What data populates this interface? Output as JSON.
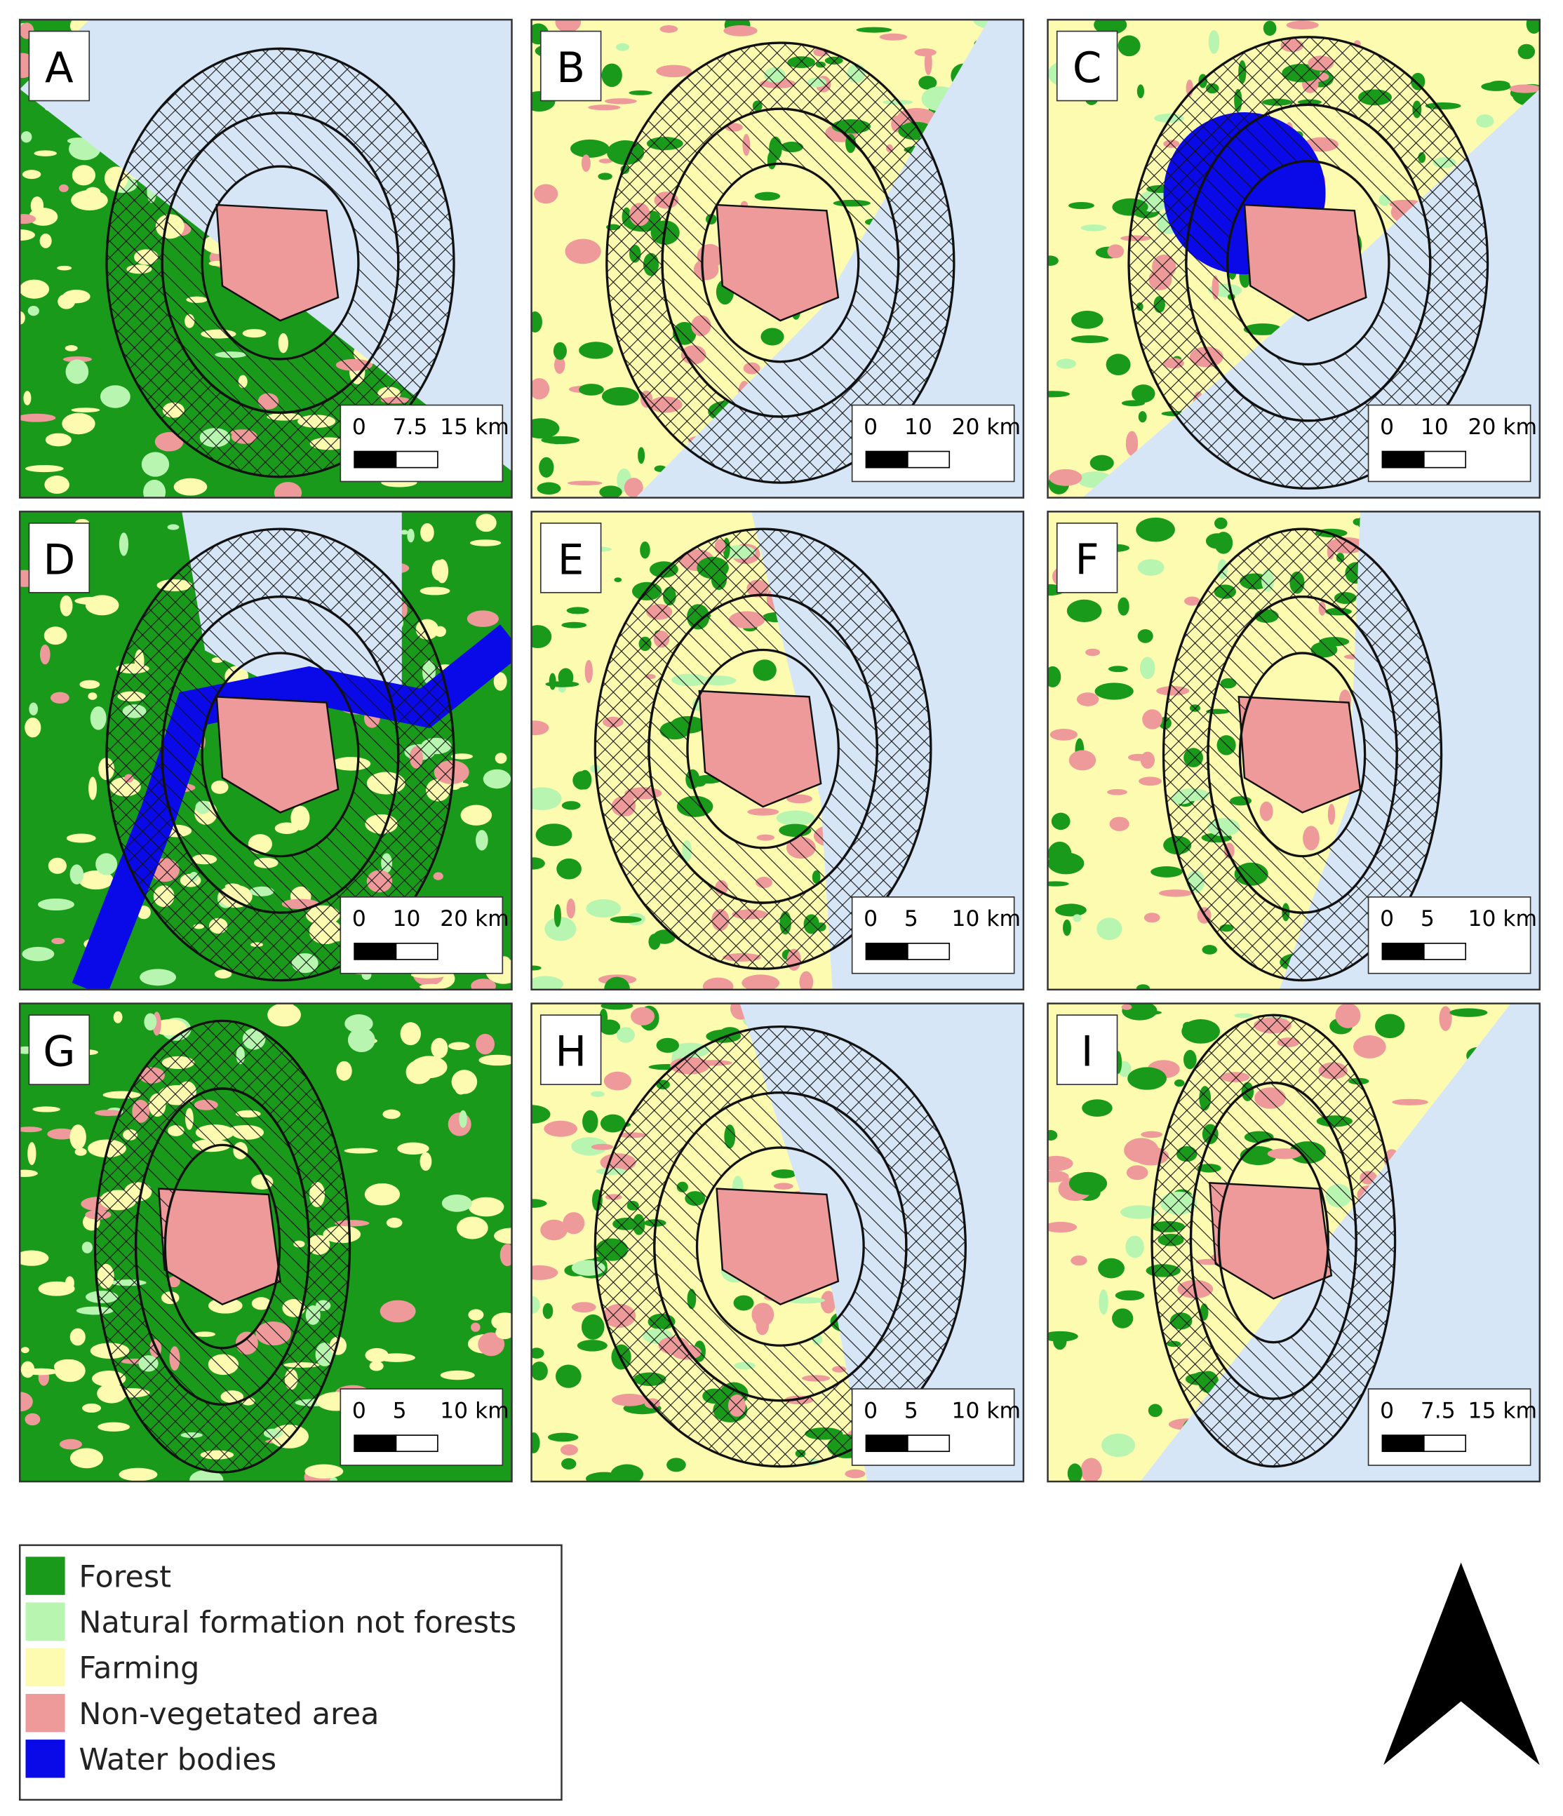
{
  "panels": [
    {
      "label": "A",
      "scale": [
        "0",
        "7.5",
        "15 km"
      ]
    },
    {
      "label": "B",
      "scale": [
        "0",
        "10",
        "20 km"
      ]
    },
    {
      "label": "C",
      "scale": [
        "0",
        "10",
        "20 km"
      ]
    },
    {
      "label": "D",
      "scale": [
        "0",
        "10",
        "20 km"
      ]
    },
    {
      "label": "E",
      "scale": [
        "0",
        "5",
        "10 km"
      ]
    },
    {
      "label": "F",
      "scale": [
        "0",
        "5",
        "10 km"
      ]
    },
    {
      "label": "G",
      "scale": [
        "0",
        "5",
        "10 km"
      ]
    },
    {
      "label": "H",
      "scale": [
        "0",
        "5",
        "10 km"
      ]
    },
    {
      "label": "I",
      "scale": [
        "0",
        "7.5",
        "15 km"
      ]
    }
  ],
  "legend": {
    "items": [
      {
        "label": "Forest",
        "color": "#1a9a1a"
      },
      {
        "label": "Natural formation not forests",
        "color": "#b8f5b0"
      },
      {
        "label": "Farming",
        "color": "#fdfbb0"
      },
      {
        "label": "Non-vegetated area",
        "color": "#ef9a9a"
      },
      {
        "label": "Water bodies",
        "color": "#0a0ae8"
      }
    ]
  }
}
